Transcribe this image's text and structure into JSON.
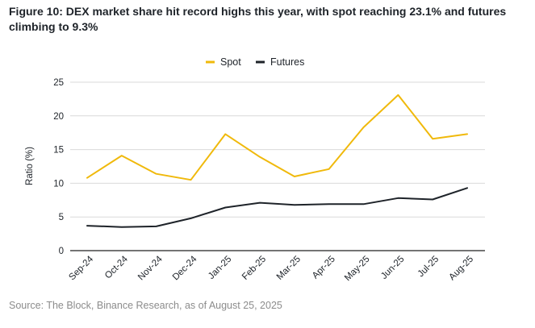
{
  "figure": {
    "title": "Figure 10: DEX market share hit record highs this year, with spot reaching 23.1% and futures climbing to 9.3%",
    "source": "Source: The Block, Binance Research, as of August 25, 2025"
  },
  "chart_data": {
    "type": "line",
    "title": "",
    "xlabel": "",
    "ylabel": "Ratio (%)",
    "categories": [
      "Sep-24",
      "Oct-24",
      "Nov-24",
      "Dec-24",
      "Jan-25",
      "Feb-25",
      "Mar-25",
      "Apr-25",
      "May-25",
      "Jun-25",
      "Jul-25",
      "Aug-25"
    ],
    "ylim": [
      0,
      25
    ],
    "yticks": [
      0,
      5,
      10,
      15,
      20,
      25
    ],
    "grid": true,
    "legend_position": "top",
    "series": [
      {
        "name": "Spot",
        "color": "#F0B90B",
        "values": [
          10.8,
          14.1,
          11.4,
          10.5,
          17.3,
          13.9,
          11.0,
          12.1,
          18.3,
          23.1,
          16.6,
          17.3
        ]
      },
      {
        "name": "Futures",
        "color": "#1E2329",
        "values": [
          3.7,
          3.5,
          3.6,
          4.8,
          6.4,
          7.1,
          6.8,
          6.9,
          6.9,
          7.8,
          7.6,
          9.3
        ]
      }
    ]
  }
}
